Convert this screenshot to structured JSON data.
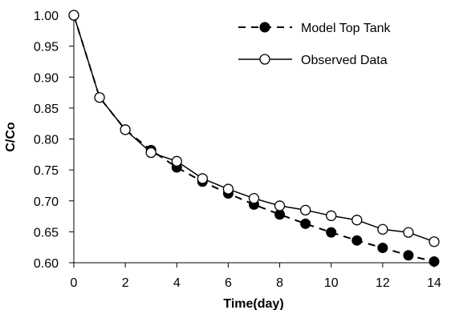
{
  "chart_data": {
    "type": "line",
    "title": "",
    "xlabel": "Time(day)",
    "ylabel": "C/Co",
    "xlim": [
      0,
      14
    ],
    "ylim": [
      0.6,
      1.0
    ],
    "x_ticks": [
      0,
      2,
      4,
      6,
      8,
      10,
      12,
      14
    ],
    "x_tick_labels": [
      "0",
      "2",
      "4",
      "6",
      "8",
      "10",
      "12",
      "14"
    ],
    "y_ticks": [
      0.6,
      0.65,
      0.7,
      0.75,
      0.8,
      0.85,
      0.9,
      0.95,
      1.0
    ],
    "y_tick_labels": [
      "0.60",
      "0.65",
      "0.70",
      "0.75",
      "0.80",
      "0.85",
      "0.90",
      "0.95",
      "1.00"
    ],
    "grid": false,
    "legend_position": "top-right",
    "series": [
      {
        "name": "Model Top Tank",
        "style": "dashed-line-filled-circle-markers",
        "color": "#000000",
        "x": [
          0,
          1,
          2,
          3,
          4,
          5,
          6,
          7,
          8,
          9,
          10,
          11,
          12,
          13,
          14
        ],
        "y": [
          1.0,
          0.867,
          0.815,
          0.782,
          0.754,
          0.731,
          0.712,
          0.694,
          0.678,
          0.663,
          0.649,
          0.636,
          0.624,
          0.612,
          0.602
        ]
      },
      {
        "name": "Observed Data",
        "style": "solid-line-open-circle-markers",
        "color": "#000000",
        "x": [
          0,
          1,
          2,
          3,
          4,
          5,
          6,
          7,
          8,
          9,
          10,
          11,
          12,
          13,
          14
        ],
        "y": [
          1.0,
          0.867,
          0.815,
          0.778,
          0.764,
          0.736,
          0.719,
          0.704,
          0.692,
          0.685,
          0.676,
          0.669,
          0.654,
          0.649,
          0.634
        ]
      }
    ]
  }
}
